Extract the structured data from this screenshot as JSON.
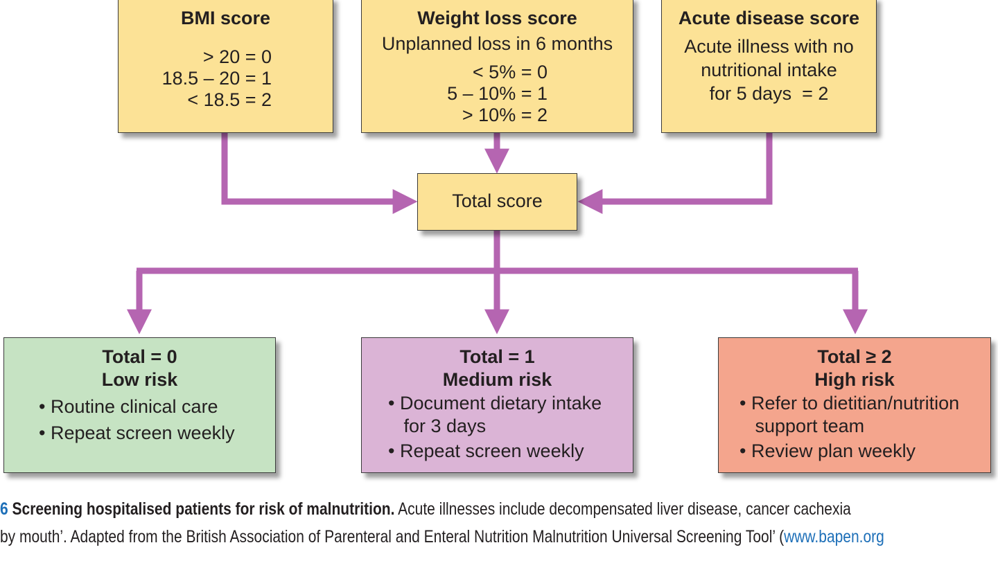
{
  "boxes": {
    "bmi": {
      "title": "BMI score",
      "lines": [
        "> 20 = 0",
        "18.5 – 20 = 1",
        "< 18.5 = 2"
      ]
    },
    "weight_loss": {
      "title": "Weight loss score",
      "subtitle": "Unplanned loss in 6 months",
      "lines": [
        "< 5% = 0",
        "5 – 10% = 1",
        "> 10% = 2"
      ]
    },
    "acute": {
      "title": "Acute disease score",
      "lines": [
        "Acute illness with no",
        "nutritional intake",
        "for 5 days  = 2"
      ]
    },
    "total": {
      "label": "Total score"
    },
    "low": {
      "title1": "Total  = 0",
      "title2": "Low risk",
      "lines": [
        "• Routine clinical care",
        "• Repeat screen weekly"
      ]
    },
    "medium": {
      "title1": "Total = 1",
      "title2": "Medium risk",
      "lines": [
        "• Document dietary intake",
        "   for 3 days",
        "• Repeat screen weekly"
      ]
    },
    "high": {
      "title1": "Total ≥ 2",
      "title2": "High risk",
      "lines": [
        "• Refer to dietitian/nutrition",
        "   support team",
        "• Review plan weekly"
      ]
    }
  },
  "caption": {
    "number": "6",
    "title": "Screening hospitalised patients for risk of malnutrition.",
    "text1": "Acute illnesses include decompensated liver disease, cancer cachexia",
    "text2": "by mouth’. Adapted from the British Association of Parenteral and Enteral Nutrition Malnutrition Universal Screening Tool’ (",
    "link": "www.bapen.org"
  },
  "colors": {
    "arrow": "#b565b1",
    "score_box": "#fce296",
    "low_risk": "#c6e3c3",
    "medium_risk": "#dbb4d6",
    "high_risk": "#f4a58d",
    "caption_accent": "#1d6fb8"
  }
}
